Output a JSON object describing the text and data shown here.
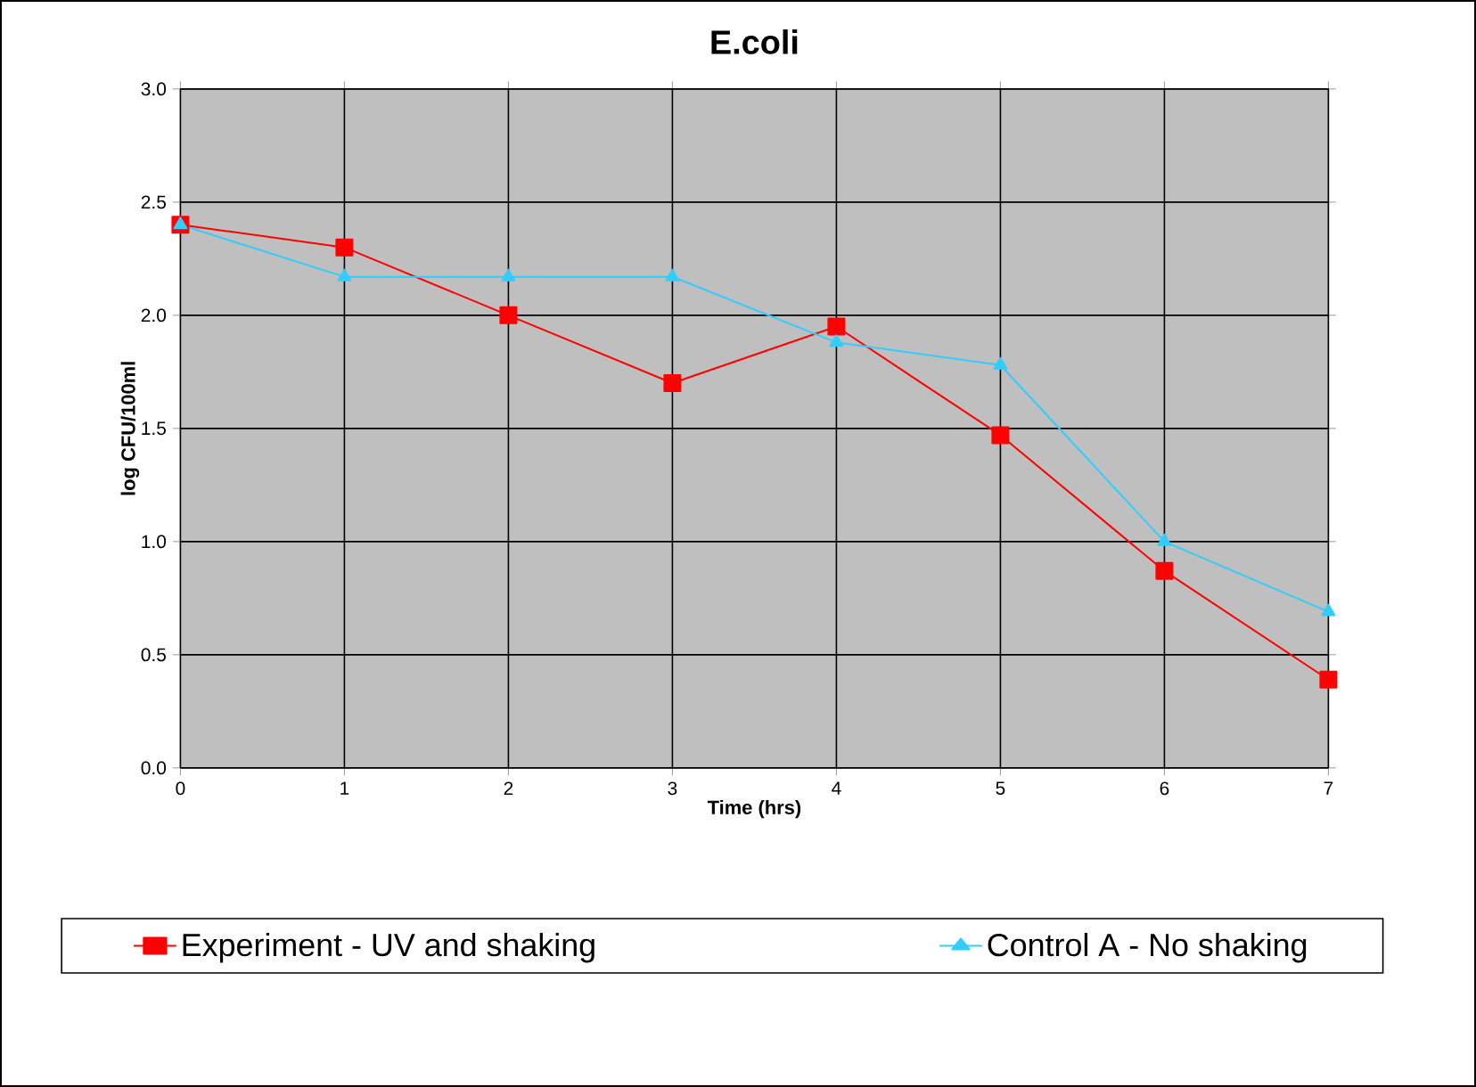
{
  "chart_data": {
    "type": "line",
    "title": "E.coli",
    "xlabel": "Time (hrs)",
    "ylabel": "log CFU/100ml",
    "x": [
      0,
      1,
      2,
      3,
      4,
      5,
      6,
      7
    ],
    "series": [
      {
        "name": "Experiment - UV and shaking",
        "color": "#ff0000",
        "marker": "square",
        "values": [
          2.4,
          2.3,
          2.0,
          1.7,
          1.95,
          1.47,
          0.87,
          0.39
        ]
      },
      {
        "name": "Control A - No shaking",
        "color": "#33ccff",
        "marker": "triangle",
        "values": [
          2.4,
          2.17,
          2.17,
          2.17,
          1.88,
          1.78,
          1.0,
          0.69
        ]
      }
    ],
    "xlim": [
      0,
      7
    ],
    "xticks": [
      0,
      1,
      2,
      3,
      4,
      5,
      6,
      7
    ],
    "ylim": [
      0,
      3.0
    ],
    "yticks": [
      {
        "value": 0,
        "label": "0.0"
      },
      {
        "value": 0.5,
        "label": "0.5"
      },
      {
        "value": 1,
        "label": "1.0"
      },
      {
        "value": 1.5,
        "label": "1.5"
      },
      {
        "value": 2,
        "label": "2.0"
      },
      {
        "value": 2.5,
        "label": "2.5"
      },
      {
        "value": 3,
        "label": "3.0"
      }
    ],
    "grid": true,
    "legend": "bottom",
    "line_style": "solid"
  }
}
